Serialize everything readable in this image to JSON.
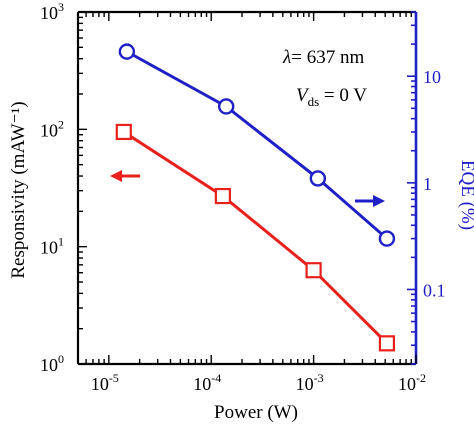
{
  "chart_data": {
    "type": "line",
    "xlabel": "Power (W)",
    "ylabel_left": "Responsivity (mAW⁻¹)",
    "ylabel_right": "EQE (%)",
    "x_scale": "log",
    "y_left_scale": "log",
    "y_right_scale": "log",
    "xlim": [
      5e-06,
      0.01
    ],
    "ylim_left": [
      1,
      1000
    ],
    "ylim_right": [
      0.02,
      40
    ],
    "x_ticks": [
      {
        "value": 1e-05,
        "base": "10",
        "exp": "-5"
      },
      {
        "value": 0.0001,
        "base": "10",
        "exp": "-4"
      },
      {
        "value": 0.001,
        "base": "10",
        "exp": "-3"
      },
      {
        "value": 0.01,
        "base": "10",
        "exp": "-2"
      }
    ],
    "y_left_ticks": [
      {
        "value": 1,
        "base": "10",
        "exp": "0"
      },
      {
        "value": 10,
        "base": "10",
        "exp": "1"
      },
      {
        "value": 100,
        "base": "10",
        "exp": "2"
      },
      {
        "value": 1000,
        "base": "10",
        "exp": "3"
      }
    ],
    "y_right_ticks": [
      {
        "value": 0.1,
        "label": "0.1"
      },
      {
        "value": 1,
        "label": "1"
      },
      {
        "value": 10,
        "label": "10"
      }
    ],
    "series": [
      {
        "axis": "left",
        "color": "#e8201c",
        "marker": "square",
        "x": [
          1.4e-05,
          0.00013,
          0.001,
          0.0052
        ],
        "y": [
          95,
          27,
          6.3,
          1.5
        ]
      },
      {
        "axis": "right",
        "color": "#1f1fc8",
        "marker": "circle",
        "x": [
          1.5e-05,
          0.00014,
          0.0011,
          0.0052
        ],
        "y": [
          17,
          5.2,
          1.1,
          0.3
        ]
      }
    ],
    "annotations": {
      "wavelength_symbol": "λ",
      "wavelength_value": "= 637 nm",
      "vds_symbol": "V",
      "vds_sub": "ds",
      "vds_value": " =  0 V"
    },
    "axis_colors": {
      "left": "#000000",
      "right": "#1f1fc8"
    }
  }
}
